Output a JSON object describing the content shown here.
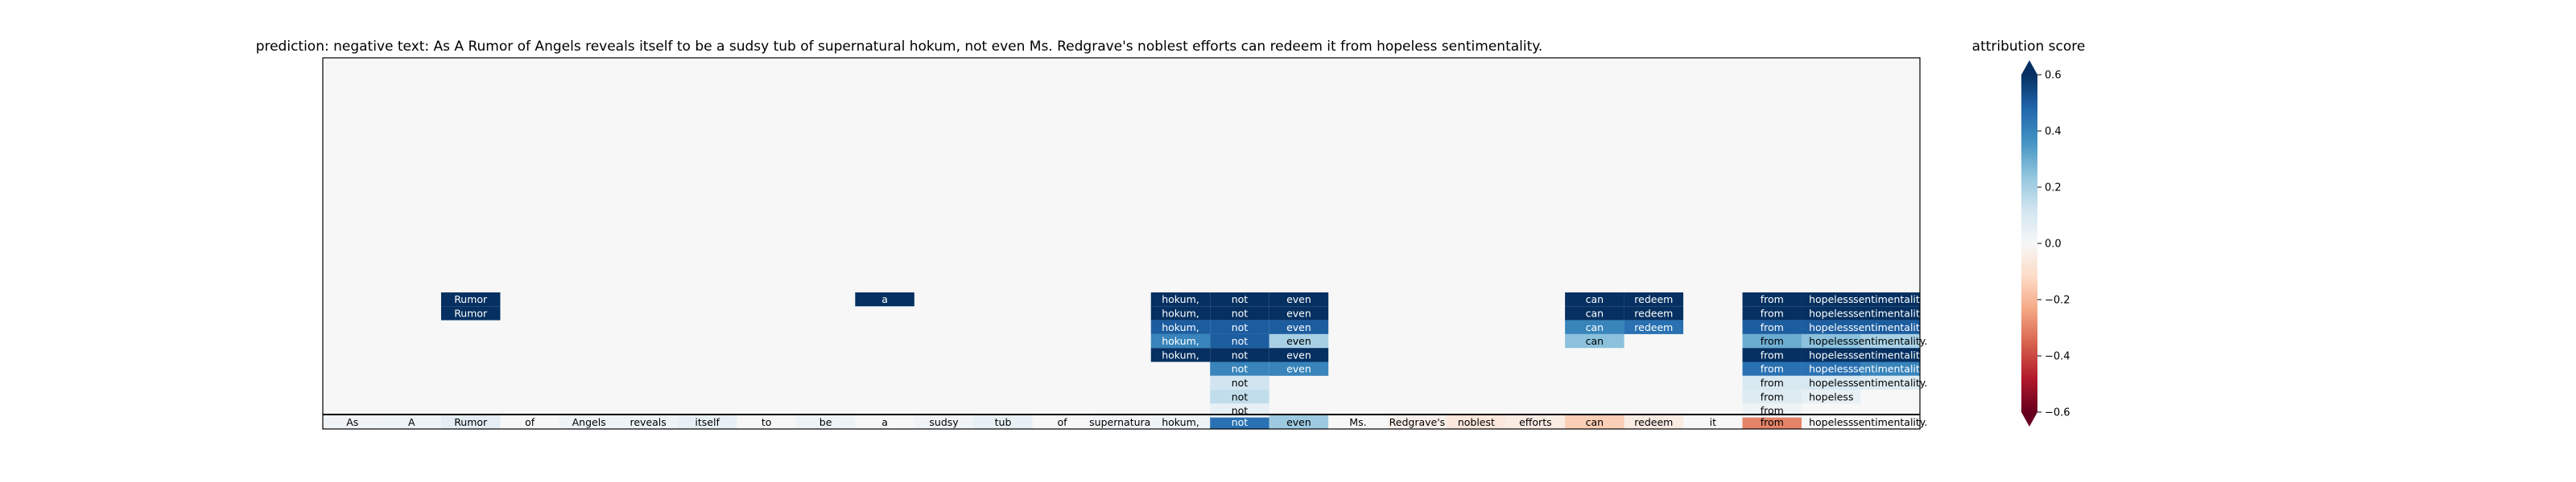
{
  "chart_data": {
    "type": "heatmap",
    "title": "prediction:  negative     text:  As A Rumor of Angels reveals itself to be a sudsy tub of supernatural hokum, not even Ms. Redgrave's noblest efforts can redeem it from hopeless sentimentality.",
    "tokens": [
      "As",
      "A",
      "Rumor",
      "of",
      "Angels",
      "reveals",
      "itself",
      "to",
      "be",
      "a",
      "sudsy",
      "tub",
      "of",
      "supernatural",
      "hokum,",
      "not",
      "even",
      "Ms.",
      "Redgrave's",
      "noblest",
      "efforts",
      "can",
      "redeem",
      "it",
      "from",
      "hopeless",
      "sentimentality."
    ],
    "base_row_scores": [
      0.02,
      0.03,
      0.06,
      0.0,
      0.03,
      0.03,
      0.05,
      0.0,
      0.03,
      0.0,
      0.02,
      0.05,
      0.0,
      0.02,
      0.03,
      0.45,
      0.22,
      0.0,
      -0.03,
      -0.07,
      -0.05,
      -0.15,
      -0.05,
      0.0,
      -0.3,
      0.0,
      0.0
    ],
    "clusters": [
      {
        "token_index": 2,
        "cells": [
          {
            "row": 1,
            "score": 0.6
          },
          {
            "row": 2,
            "score": 0.6
          }
        ]
      },
      {
        "token_index": 9,
        "cells": [
          {
            "row": 1,
            "score": 0.6
          }
        ]
      },
      {
        "token_index": 14,
        "cells": [
          {
            "row": 1,
            "score": 0.6
          },
          {
            "row": 2,
            "score": 0.6
          },
          {
            "row": 3,
            "score": 0.5
          },
          {
            "row": 4,
            "score": 0.4
          },
          {
            "row": 5,
            "score": 0.6
          }
        ]
      },
      {
        "token_index": 15,
        "cells": [
          {
            "row": 1,
            "score": 0.6
          },
          {
            "row": 2,
            "score": 0.6
          },
          {
            "row": 3,
            "score": 0.5
          },
          {
            "row": 4,
            "score": 0.5
          },
          {
            "row": 5,
            "score": 0.6
          },
          {
            "row": 6,
            "score": 0.4
          },
          {
            "row": 7,
            "score": 0.12
          },
          {
            "row": 8,
            "score": 0.15
          },
          {
            "row": 9,
            "score": 0.05
          }
        ]
      },
      {
        "token_index": 16,
        "cells": [
          {
            "row": 1,
            "score": 0.6
          },
          {
            "row": 2,
            "score": 0.6
          },
          {
            "row": 3,
            "score": 0.5
          },
          {
            "row": 4,
            "score": 0.2
          },
          {
            "row": 5,
            "score": 0.6
          },
          {
            "row": 6,
            "score": 0.4
          }
        ]
      },
      {
        "token_index": 21,
        "cells": [
          {
            "row": 1,
            "score": 0.6
          },
          {
            "row": 2,
            "score": 0.6
          },
          {
            "row": 3,
            "score": 0.4
          },
          {
            "row": 4,
            "score": 0.25
          }
        ]
      },
      {
        "token_index": 22,
        "cells": [
          {
            "row": 1,
            "score": 0.6
          },
          {
            "row": 2,
            "score": 0.6
          },
          {
            "row": 3,
            "score": 0.45
          }
        ]
      },
      {
        "token_index": 24,
        "cells": [
          {
            "row": 1,
            "score": 0.6
          },
          {
            "row": 2,
            "score": 0.6
          },
          {
            "row": 3,
            "score": 0.5
          },
          {
            "row": 4,
            "score": 0.3
          },
          {
            "row": 5,
            "score": 0.6
          },
          {
            "row": 6,
            "score": 0.45
          },
          {
            "row": 7,
            "score": 0.1
          },
          {
            "row": 8,
            "score": 0.08
          },
          {
            "row": 9,
            "score": 0.03
          }
        ]
      },
      {
        "token_index": 25,
        "cells": [
          {
            "row": 1,
            "score": 0.6
          },
          {
            "row": 2,
            "score": 0.6
          },
          {
            "row": 3,
            "score": 0.5
          },
          {
            "row": 4,
            "score": 0.25
          },
          {
            "row": 5,
            "score": 0.6
          },
          {
            "row": 6,
            "score": 0.45
          },
          {
            "row": 7,
            "score": 0.1
          },
          {
            "row": 8,
            "score": 0.05
          }
        ]
      },
      {
        "token_index": 26,
        "cells": [
          {
            "row": 1,
            "score": 0.6
          },
          {
            "row": 2,
            "score": 0.6
          },
          {
            "row": 3,
            "score": 0.5
          },
          {
            "row": 4,
            "score": 0.2
          },
          {
            "row": 5,
            "score": 0.6
          },
          {
            "row": 6,
            "score": 0.4
          },
          {
            "row": 7,
            "score": 0.08
          }
        ]
      }
    ],
    "colorbar": {
      "label": "attribution score",
      "range": [
        -0.6,
        0.6
      ],
      "ticks": [
        "0.6",
        "0.4",
        "0.2",
        "0.0",
        "−0.2",
        "−0.4",
        "−0.6"
      ],
      "tick_values": [
        0.6,
        0.4,
        0.2,
        0.0,
        -0.2,
        -0.4,
        -0.6
      ],
      "colormap": "RdBu",
      "extend": "both"
    }
  },
  "colors": {
    "background": "#f7f7f7",
    "frame": "#000000",
    "neg_dark": "#67001f",
    "neutral": "#f7f7f7",
    "pos_dark": "#053061"
  }
}
